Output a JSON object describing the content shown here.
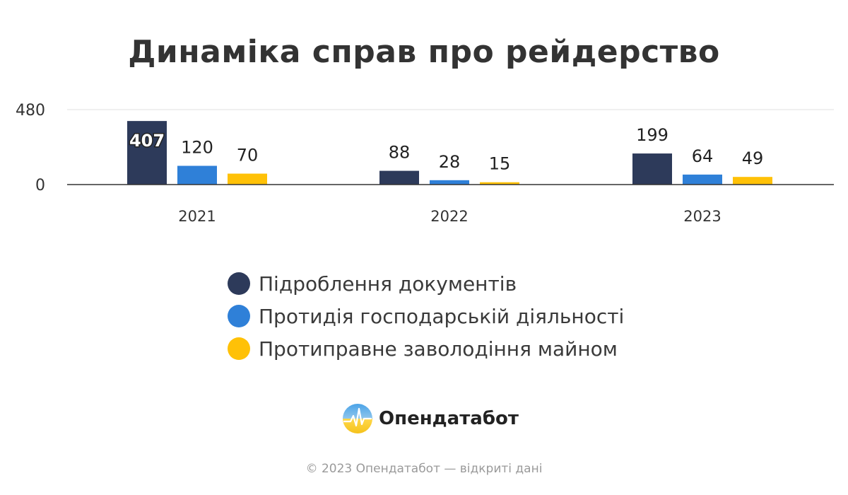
{
  "chart_data": {
    "type": "bar",
    "title": "Динаміка справ про рейдерство",
    "categories": [
      "2021",
      "2022",
      "2023"
    ],
    "series": [
      {
        "name": "Підроблення документів",
        "values": [
          407,
          88,
          199
        ],
        "color": "#2d3a5a"
      },
      {
        "name": "Протидія господарській діяльності",
        "values": [
          120,
          28,
          64
        ],
        "color": "#2f80d8"
      },
      {
        "name": "Протиправне заволодіння майном",
        "values": [
          70,
          15,
          49
        ],
        "color": "#ffc107"
      }
    ],
    "ylim": [
      0,
      480
    ],
    "yticks": [
      "0",
      "480"
    ],
    "xlabel": "",
    "ylabel": "",
    "grid": true,
    "legend_position": "bottom"
  },
  "brand": {
    "name": "Опендатабот",
    "icon": "opendatabot-logo-icon"
  },
  "footer": {
    "text": "© 2023 Опендатабот — відкриті дані"
  }
}
